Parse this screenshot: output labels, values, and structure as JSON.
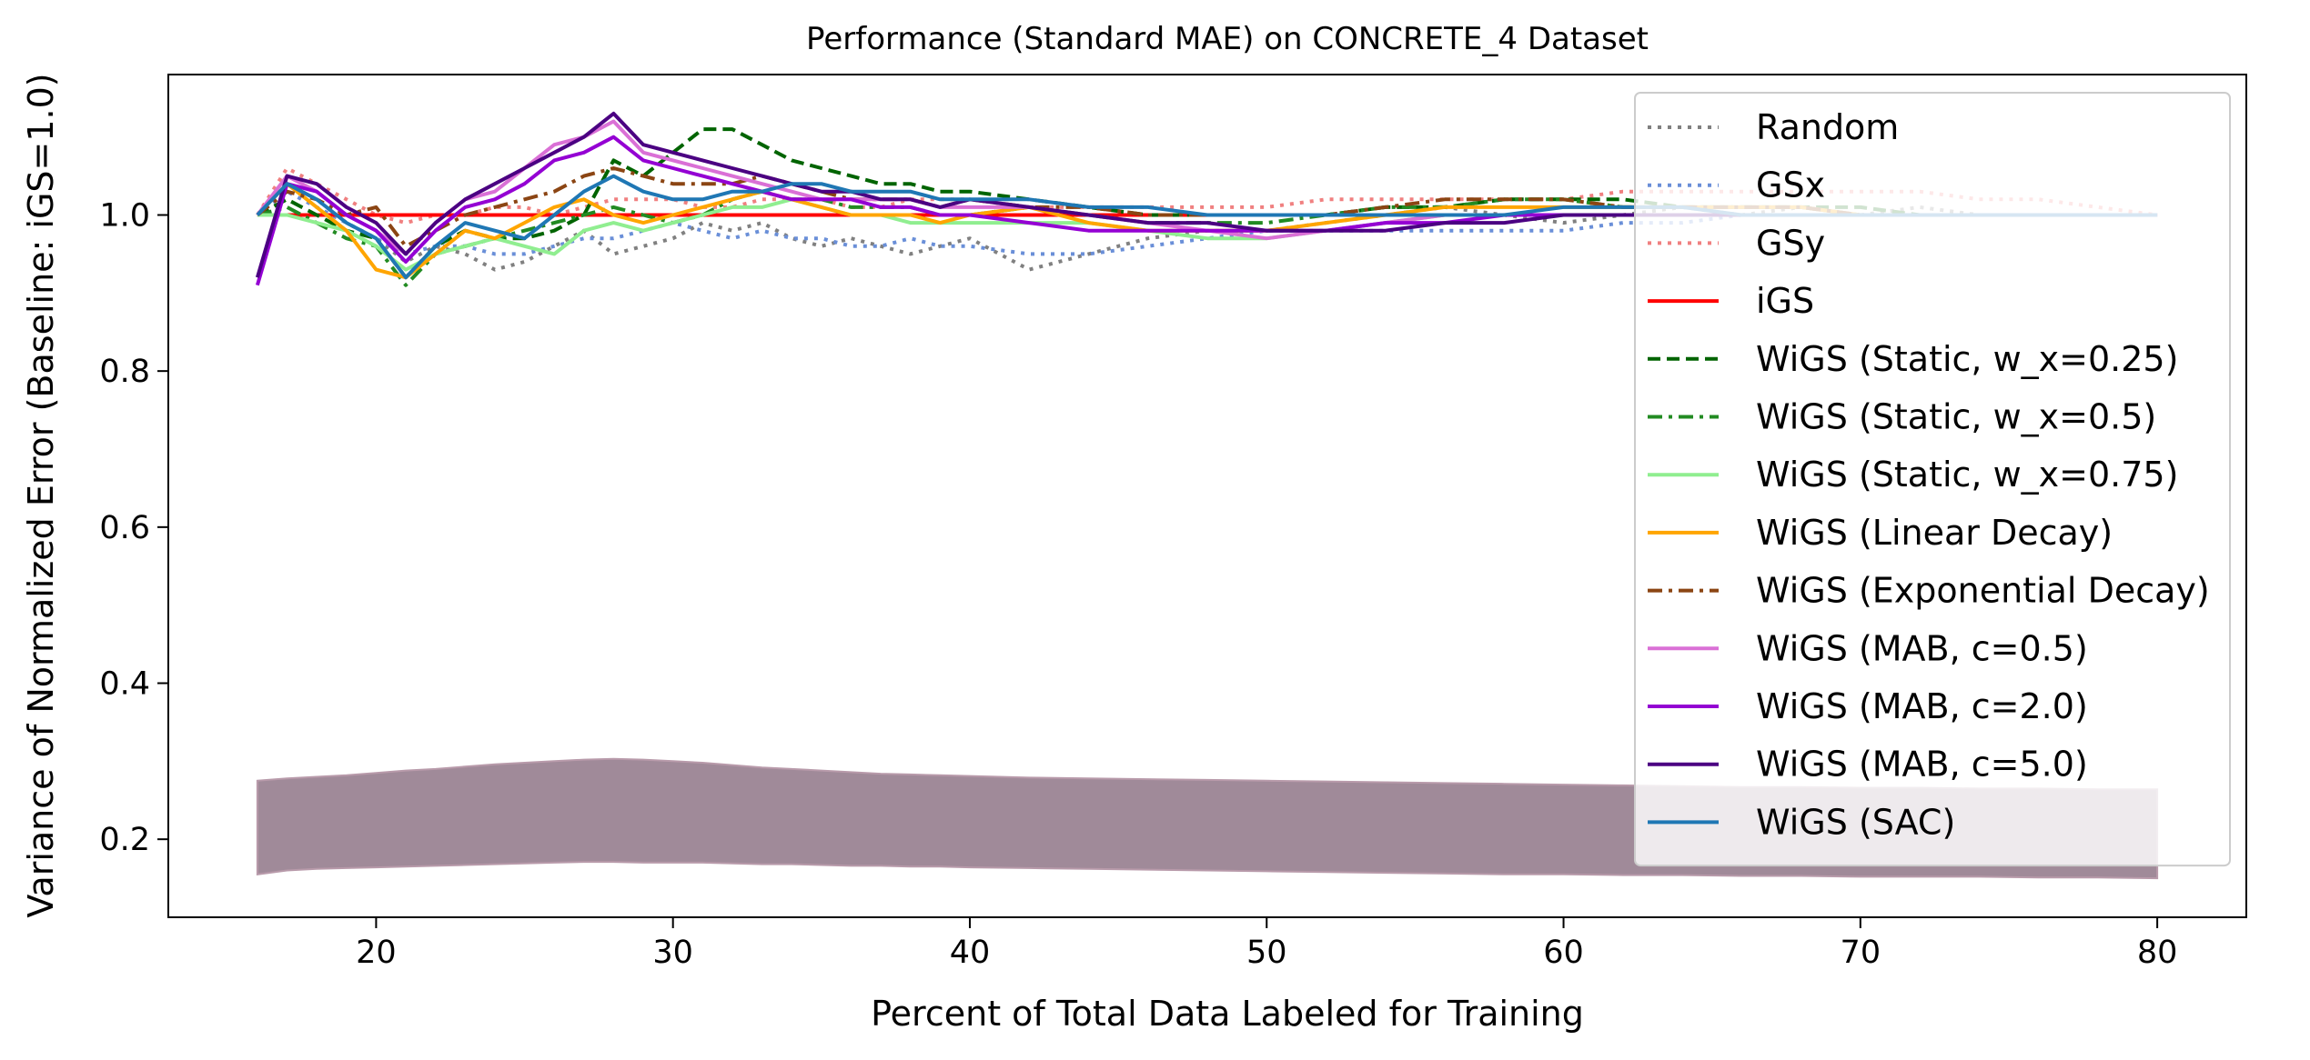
{
  "chart_data": {
    "type": "line",
    "title": "Performance (Standard MAE) on CONCRETE_4 Dataset",
    "xlabel": "Percent of Total Data Labeled for Training",
    "ylabel": "Variance of Normalized Error (Baseline: iGS=1.0)",
    "xlim": [
      13,
      83
    ],
    "ylim": [
      0.1,
      1.18
    ],
    "xticks": [
      20,
      30,
      40,
      50,
      60,
      70,
      80
    ],
    "yticks": [
      0.2,
      0.4,
      0.6,
      0.8,
      1.0
    ],
    "xtick_labels": [
      "20",
      "30",
      "40",
      "50",
      "60",
      "70",
      "80"
    ],
    "ytick_labels": [
      "0.2",
      "0.4",
      "0.6",
      "0.8",
      "1.0"
    ],
    "grid": false,
    "legend_position": "top-right",
    "x": [
      16,
      17,
      18,
      19,
      20,
      21,
      22,
      23,
      24,
      25,
      26,
      27,
      28,
      29,
      30,
      31,
      32,
      33,
      34,
      35,
      36,
      37,
      38,
      39,
      40,
      42,
      44,
      46,
      48,
      50,
      52,
      54,
      56,
      58,
      60,
      62,
      64,
      66,
      68,
      70,
      72,
      74,
      76,
      78,
      80
    ],
    "series": [
      {
        "name": "Random",
        "color": "#808080",
        "dash": "dotted",
        "values": [
          1.0,
          1.04,
          1.02,
          0.99,
          0.97,
          0.94,
          0.96,
          0.95,
          0.93,
          0.94,
          0.96,
          0.98,
          0.95,
          0.96,
          0.97,
          0.99,
          0.98,
          0.99,
          0.97,
          0.96,
          0.97,
          0.96,
          0.95,
          0.96,
          0.97,
          0.93,
          0.95,
          0.97,
          0.98,
          0.98,
          0.99,
          1.0,
          1.01,
          1.0,
          0.99,
          1.0,
          1.01,
          1.0,
          1.01,
          1.0,
          1.01,
          1.0,
          1.0,
          1.0,
          1.0
        ]
      },
      {
        "name": "GSx",
        "color": "#6a8fd8",
        "dash": "dotted",
        "values": [
          1.0,
          1.03,
          1.01,
          0.99,
          0.97,
          0.95,
          0.96,
          0.96,
          0.95,
          0.95,
          0.96,
          0.97,
          0.97,
          0.98,
          0.99,
          0.98,
          0.97,
          0.98,
          0.97,
          0.97,
          0.96,
          0.96,
          0.97,
          0.96,
          0.96,
          0.95,
          0.95,
          0.96,
          0.97,
          0.98,
          0.98,
          0.98,
          0.98,
          0.98,
          0.98,
          0.99,
          0.99,
          1.0,
          1.0,
          1.0,
          1.0,
          1.0,
          1.0,
          1.0,
          1.0
        ]
      },
      {
        "name": "GSy",
        "color": "#f08080",
        "dash": "dotted",
        "values": [
          1.0,
          1.06,
          1.04,
          1.02,
          1.0,
          0.99,
          1.0,
          1.0,
          1.01,
          1.01,
          1.0,
          1.01,
          1.02,
          1.02,
          1.02,
          1.01,
          1.01,
          1.02,
          1.02,
          1.02,
          1.01,
          1.01,
          1.02,
          1.02,
          1.02,
          1.01,
          1.01,
          1.01,
          1.01,
          1.01,
          1.02,
          1.02,
          1.02,
          1.02,
          1.02,
          1.03,
          1.03,
          1.03,
          1.03,
          1.03,
          1.03,
          1.02,
          1.02,
          1.01,
          1.0
        ]
      },
      {
        "name": "iGS",
        "color": "#ff0000",
        "dash": "solid",
        "values": [
          1.0,
          1.0,
          1.0,
          1.0,
          1.0,
          1.0,
          1.0,
          1.0,
          1.0,
          1.0,
          1.0,
          1.0,
          1.0,
          1.0,
          1.0,
          1.0,
          1.0,
          1.0,
          1.0,
          1.0,
          1.0,
          1.0,
          1.0,
          1.0,
          1.0,
          1.0,
          1.0,
          1.0,
          1.0,
          1.0,
          1.0,
          1.0,
          1.0,
          1.0,
          1.0,
          1.0,
          1.0,
          1.0,
          1.0,
          1.0,
          1.0,
          1.0,
          1.0,
          1.0,
          1.0
        ]
      },
      {
        "name": "WiGS (Static, w_x=0.25)",
        "color": "#006400",
        "dash": "dashed",
        "values": [
          1.0,
          1.02,
          1.0,
          0.98,
          0.97,
          0.92,
          0.96,
          0.98,
          0.97,
          0.97,
          0.98,
          1.0,
          1.07,
          1.05,
          1.08,
          1.11,
          1.11,
          1.09,
          1.07,
          1.06,
          1.05,
          1.04,
          1.04,
          1.03,
          1.03,
          1.02,
          1.01,
          1.0,
          1.0,
          1.0,
          1.0,
          1.01,
          1.01,
          1.02,
          1.02,
          1.02,
          1.01,
          1.01,
          1.01,
          1.01,
          1.0,
          1.0,
          1.0,
          1.0,
          1.0
        ]
      },
      {
        "name": "WiGS (Static, w_x=0.5)",
        "color": "#228b22",
        "dash": "dashdot",
        "values": [
          1.0,
          1.01,
          0.99,
          0.97,
          0.96,
          0.91,
          0.95,
          0.96,
          0.97,
          0.98,
          0.99,
          1.0,
          1.01,
          1.0,
          0.99,
          1.0,
          1.02,
          1.03,
          1.02,
          1.02,
          1.01,
          1.01,
          1.01,
          1.0,
          1.0,
          1.01,
          1.0,
          0.99,
          0.99,
          0.99,
          1.0,
          1.01,
          1.01,
          1.02,
          1.02,
          1.01,
          1.01,
          1.01,
          1.01,
          1.0,
          1.0,
          1.0,
          1.0,
          1.0,
          1.0
        ]
      },
      {
        "name": "WiGS (Static, w_x=0.75)",
        "color": "#90ee90",
        "dash": "solid",
        "values": [
          1.0,
          1.0,
          0.99,
          0.98,
          0.96,
          0.93,
          0.95,
          0.96,
          0.97,
          0.96,
          0.95,
          0.98,
          0.99,
          0.98,
          0.99,
          1.0,
          1.01,
          1.01,
          1.02,
          1.01,
          1.0,
          1.0,
          0.99,
          0.99,
          0.99,
          0.99,
          0.99,
          0.98,
          0.97,
          0.97,
          0.98,
          0.99,
          1.0,
          1.0,
          1.0,
          1.0,
          1.0,
          1.0,
          1.0,
          1.0,
          1.0,
          1.0,
          1.0,
          1.0,
          1.0
        ]
      },
      {
        "name": "WiGS (Linear Decay)",
        "color": "#ffa500",
        "dash": "solid",
        "values": [
          1.0,
          1.04,
          1.01,
          0.98,
          0.93,
          0.92,
          0.95,
          0.98,
          0.97,
          0.99,
          1.01,
          1.02,
          1.0,
          0.99,
          1.0,
          1.01,
          1.02,
          1.03,
          1.02,
          1.01,
          1.0,
          1.0,
          1.0,
          0.99,
          1.0,
          1.01,
          0.99,
          0.98,
          0.98,
          0.98,
          0.99,
          1.0,
          1.01,
          1.01,
          1.01,
          1.01,
          1.01,
          1.01,
          1.01,
          1.0,
          1.0,
          1.0,
          1.0,
          1.0,
          1.0
        ]
      },
      {
        "name": "WiGS (Exponential Decay)",
        "color": "#8b4513",
        "dash": "dashdot",
        "values": [
          1.0,
          1.03,
          1.02,
          1.0,
          1.01,
          0.96,
          0.98,
          1.0,
          1.01,
          1.02,
          1.03,
          1.05,
          1.06,
          1.05,
          1.04,
          1.04,
          1.04,
          1.05,
          1.04,
          1.03,
          1.02,
          1.02,
          1.02,
          1.01,
          1.02,
          1.01,
          1.01,
          1.0,
          1.0,
          1.0,
          1.0,
          1.01,
          1.02,
          1.02,
          1.02,
          1.01,
          1.01,
          1.01,
          1.01,
          1.0,
          1.0,
          1.0,
          1.0,
          1.0,
          1.0
        ]
      },
      {
        "name": "WiGS (MAB, c=0.5)",
        "color": "#da70d6",
        "dash": "solid",
        "values": [
          1.0,
          1.05,
          1.03,
          1.0,
          0.98,
          0.95,
          0.99,
          1.02,
          1.03,
          1.06,
          1.09,
          1.1,
          1.12,
          1.08,
          1.07,
          1.06,
          1.05,
          1.04,
          1.03,
          1.02,
          1.02,
          1.02,
          1.02,
          1.01,
          1.01,
          1.01,
          1.0,
          0.99,
          0.98,
          0.97,
          0.98,
          0.99,
          1.0,
          1.0,
          1.0,
          1.0,
          1.0,
          1.0,
          1.0,
          1.0,
          1.0,
          1.0,
          1.0,
          1.0,
          1.0
        ]
      },
      {
        "name": "WiGS (MAB, c=2.0)",
        "color": "#9400d3",
        "dash": "solid",
        "values": [
          0.91,
          1.04,
          1.03,
          1.0,
          0.98,
          0.94,
          0.98,
          1.01,
          1.02,
          1.04,
          1.07,
          1.08,
          1.1,
          1.07,
          1.06,
          1.05,
          1.04,
          1.03,
          1.02,
          1.02,
          1.02,
          1.01,
          1.01,
          1.0,
          1.0,
          0.99,
          0.98,
          0.98,
          0.98,
          0.98,
          0.98,
          0.99,
          0.99,
          1.0,
          1.0,
          1.0,
          1.0,
          1.0,
          1.0,
          1.0,
          1.0,
          1.0,
          1.0,
          1.0,
          1.0
        ]
      },
      {
        "name": "WiGS (MAB, c=5.0)",
        "color": "#4b0082",
        "dash": "solid",
        "values": [
          0.92,
          1.05,
          1.04,
          1.01,
          0.99,
          0.95,
          0.99,
          1.02,
          1.04,
          1.06,
          1.08,
          1.1,
          1.13,
          1.09,
          1.08,
          1.07,
          1.06,
          1.05,
          1.04,
          1.03,
          1.03,
          1.02,
          1.02,
          1.01,
          1.02,
          1.01,
          1.0,
          0.99,
          0.99,
          0.98,
          0.98,
          0.98,
          0.99,
          0.99,
          1.0,
          1.0,
          1.0,
          1.0,
          1.0,
          1.0,
          1.0,
          1.0,
          1.0,
          1.0,
          1.0
        ]
      },
      {
        "name": "WiGS (SAC)",
        "color": "#1f77b4",
        "dash": "solid",
        "values": [
          1.0,
          1.04,
          1.02,
          0.99,
          0.97,
          0.92,
          0.96,
          0.99,
          0.98,
          0.97,
          1.0,
          1.03,
          1.05,
          1.03,
          1.02,
          1.02,
          1.03,
          1.03,
          1.04,
          1.04,
          1.03,
          1.03,
          1.03,
          1.02,
          1.02,
          1.02,
          1.01,
          1.01,
          1.0,
          1.0,
          1.0,
          1.0,
          1.0,
          1.0,
          1.01,
          1.01,
          1.01,
          1.0,
          1.0,
          1.0,
          1.0,
          1.0,
          1.0,
          1.0,
          1.0
        ]
      }
    ],
    "band": {
      "color": "#9b8494",
      "lower": [
        0.155,
        0.16,
        0.162,
        0.163,
        0.164,
        0.165,
        0.166,
        0.167,
        0.168,
        0.169,
        0.17,
        0.171,
        0.171,
        0.17,
        0.17,
        0.17,
        0.169,
        0.168,
        0.168,
        0.167,
        0.166,
        0.166,
        0.165,
        0.165,
        0.164,
        0.163,
        0.162,
        0.161,
        0.16,
        0.159,
        0.158,
        0.157,
        0.156,
        0.155,
        0.155,
        0.154,
        0.154,
        0.153,
        0.153,
        0.152,
        0.152,
        0.152,
        0.151,
        0.151,
        0.15
      ],
      "upper": [
        0.275,
        0.278,
        0.28,
        0.282,
        0.285,
        0.288,
        0.29,
        0.293,
        0.296,
        0.298,
        0.3,
        0.302,
        0.303,
        0.302,
        0.3,
        0.298,
        0.295,
        0.292,
        0.29,
        0.288,
        0.286,
        0.284,
        0.283,
        0.282,
        0.281,
        0.279,
        0.278,
        0.277,
        0.276,
        0.275,
        0.274,
        0.273,
        0.272,
        0.271,
        0.27,
        0.269,
        0.268,
        0.267,
        0.267,
        0.266,
        0.266,
        0.265,
        0.265,
        0.264,
        0.264
      ]
    }
  }
}
